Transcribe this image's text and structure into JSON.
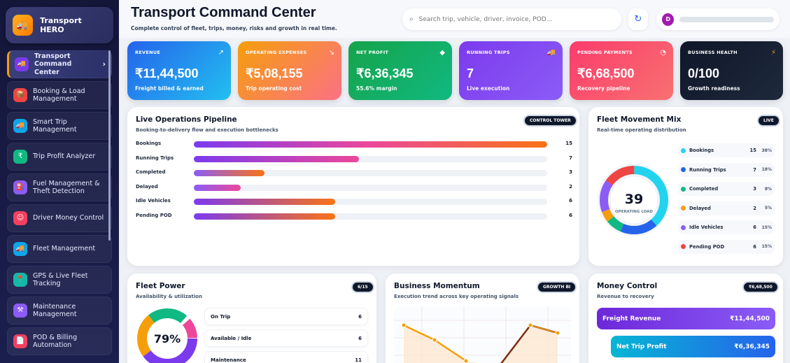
{
  "app": {
    "brand": "Transport HERO"
  },
  "sidebar": {
    "items": [
      {
        "label": "Transport Command Center",
        "icon": "truck-icon",
        "color": "#7c3aed"
      },
      {
        "label": "Booking & Load Management",
        "icon": "box-icon",
        "color": "#ef4444"
      },
      {
        "label": "Smart Trip Management",
        "icon": "truck-icon",
        "color": "#0ea5e9"
      },
      {
        "label": "Trip Profit Analyzer",
        "icon": "money-icon",
        "color": "#10b981"
      },
      {
        "label": "Fuel Management & Theft Detection",
        "icon": "fuel-icon",
        "color": "#8b5cf6"
      },
      {
        "label": "Driver Money Control",
        "icon": "driver-icon",
        "color": "#f43f5e"
      },
      {
        "label": "Fleet Management",
        "icon": "truck-icon",
        "color": "#0ea5e9"
      },
      {
        "label": "GPS & Live Fleet Tracking",
        "icon": "pin-icon",
        "color": "#14b8a6"
      },
      {
        "label": "Maintenance Management",
        "icon": "wrench-icon",
        "color": "#8b5cf6"
      },
      {
        "label": "POD & Billing Automation",
        "icon": "document-icon",
        "color": "#f43f5e"
      }
    ]
  },
  "header": {
    "title": "Transport Command Center",
    "subtitle": "Complete control of fleet, trips, money, risks and growth in real time.",
    "search_placeholder": "Search trip, vehicle, driver, invoice, POD...",
    "avatar_initial": "D"
  },
  "kpis": [
    {
      "label": "Revenue",
      "value": "₹11,44,500",
      "sub": "Freight billed & earned",
      "icon": "↗"
    },
    {
      "label": "Operating Expenses",
      "value": "₹5,08,155",
      "sub": "Trip operating cost",
      "icon": "↘"
    },
    {
      "label": "Net Profit",
      "value": "₹6,36,345",
      "sub": "55.6% margin",
      "icon": "◆"
    },
    {
      "label": "Running Trips",
      "value": "7",
      "sub": "Live execution",
      "icon": "🚚"
    },
    {
      "label": "Pending Payments",
      "value": "₹6,68,500",
      "sub": "Recovery pipeline",
      "icon": "◔"
    },
    {
      "label": "Business Health",
      "value": "0/100",
      "sub": "Growth readiness",
      "icon": "⚡"
    }
  ],
  "pipeline": {
    "title": "Live Operations Pipeline",
    "subtitle": "Booking-to-delivery flow and execution bottlenecks",
    "badge": "CONTROL TOWER",
    "max": 15,
    "rows": [
      {
        "label": "Bookings",
        "value": 15
      },
      {
        "label": "Running Trips",
        "value": 7
      },
      {
        "label": "Completed",
        "value": 3
      },
      {
        "label": "Delayed",
        "value": 2
      },
      {
        "label": "Idle Vehicles",
        "value": 6
      },
      {
        "label": "Pending POD",
        "value": 6
      }
    ]
  },
  "mix": {
    "title": "Fleet Movement Mix",
    "subtitle": "Real-time operating distribution",
    "badge": "LIVE",
    "total": "39",
    "total_label": "OPERATING LOAD",
    "rows": [
      {
        "label": "Bookings",
        "count": "15",
        "pct": "38%",
        "color": "#22d3ee"
      },
      {
        "label": "Running Trips",
        "count": "7",
        "pct": "18%",
        "color": "#2563eb"
      },
      {
        "label": "Completed",
        "count": "3",
        "pct": "8%",
        "color": "#10b981"
      },
      {
        "label": "Delayed",
        "count": "2",
        "pct": "5%",
        "color": "#f59e0b"
      },
      {
        "label": "Idle Vehicles",
        "count": "6",
        "pct": "15%",
        "color": "#8b5cf6"
      },
      {
        "label": "Pending POD",
        "count": "6",
        "pct": "15%",
        "color": "#ef4444"
      }
    ]
  },
  "fleet_power": {
    "title": "Fleet Power",
    "subtitle": "Availability & utilization",
    "badge": "6/15",
    "percent": "79%",
    "rows": [
      {
        "label": "On Trip",
        "value": "6"
      },
      {
        "label": "Available / Idle",
        "value": "6"
      },
      {
        "label": "Maintenance",
        "value": "11"
      }
    ]
  },
  "momentum": {
    "title": "Business Momentum",
    "subtitle": "Execution trend across key operating signals",
    "badge": "GROWTH BI"
  },
  "money": {
    "title": "Money Control",
    "subtitle": "Revenue to recovery",
    "badge": "₹6,68,500",
    "rows": [
      {
        "label": "Freight Revenue",
        "value": "₹11,44,500"
      },
      {
        "label": "Net Trip Profit",
        "value": "₹6,36,345"
      }
    ]
  }
}
